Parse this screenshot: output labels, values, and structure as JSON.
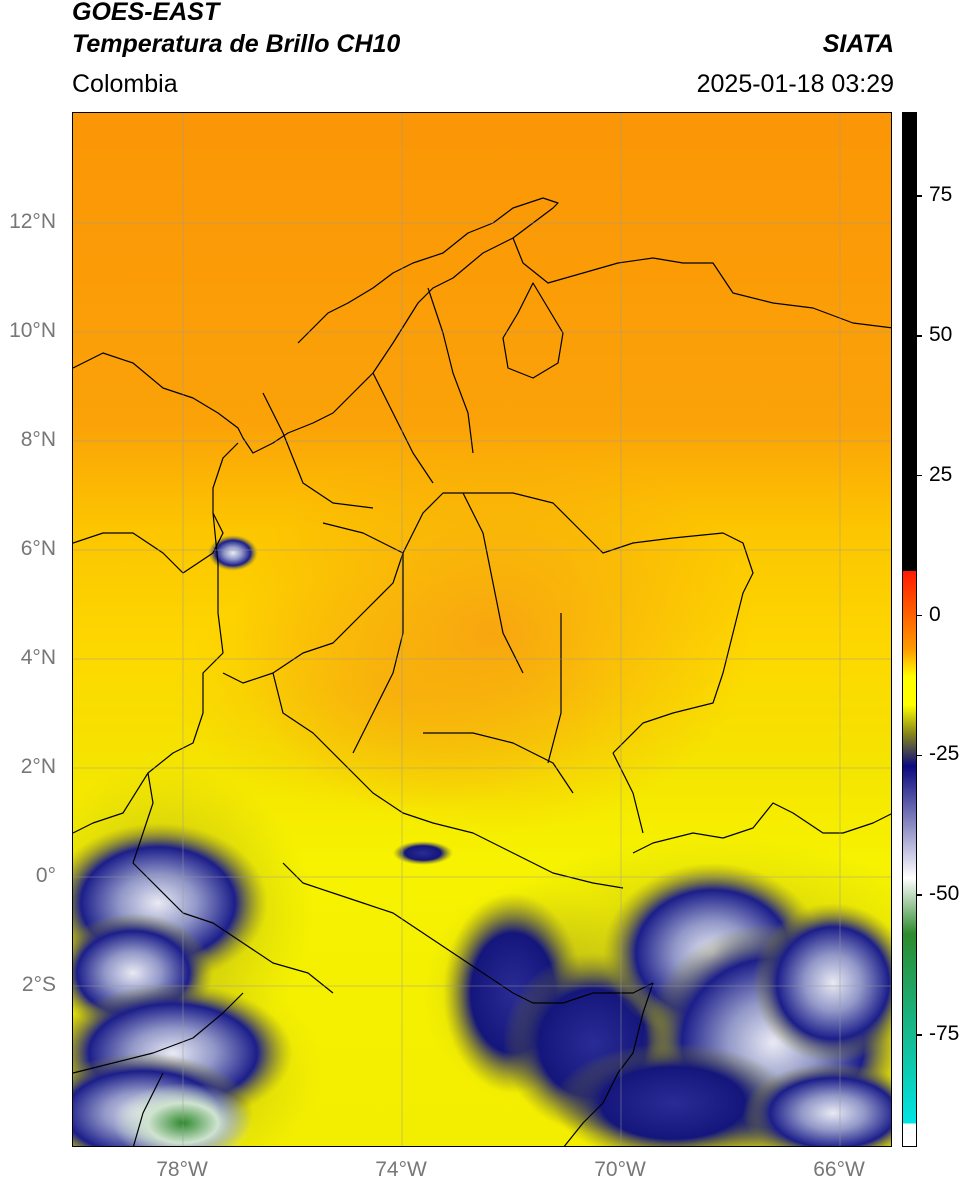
{
  "header": {
    "satellite": "GOES-EAST",
    "product": "Temperatura de Brillo CH10",
    "agency": "SIATA",
    "region": "Colombia",
    "datetime": "2025-01-18 03:29"
  },
  "map": {
    "lat_ticks": [
      "12°N",
      "10°N",
      "8°N",
      "6°N",
      "4°N",
      "2°N",
      "0°",
      "2°S"
    ],
    "lon_ticks": [
      "78°W",
      "74°W",
      "70°W",
      "66°W"
    ],
    "lon_range": [
      -80,
      -65
    ],
    "lat_range": [
      -5.3,
      14
    ]
  },
  "colorbar": {
    "labels": [
      "75",
      "50",
      "25",
      "0",
      "-25",
      "-50",
      "-75"
    ],
    "values": [
      75,
      50,
      25,
      0,
      -25,
      -50,
      -75
    ],
    "range": [
      -95,
      90
    ],
    "colors": {
      "black": "#000000",
      "red": "#ff1a00",
      "orange": "#ff9900",
      "yellow": "#ffff00",
      "olive": "#8a8a1a",
      "navy": "#0a0a80",
      "white": "#ffffff",
      "green": "#2e8b2e",
      "cyan": "#00e5e5"
    }
  }
}
